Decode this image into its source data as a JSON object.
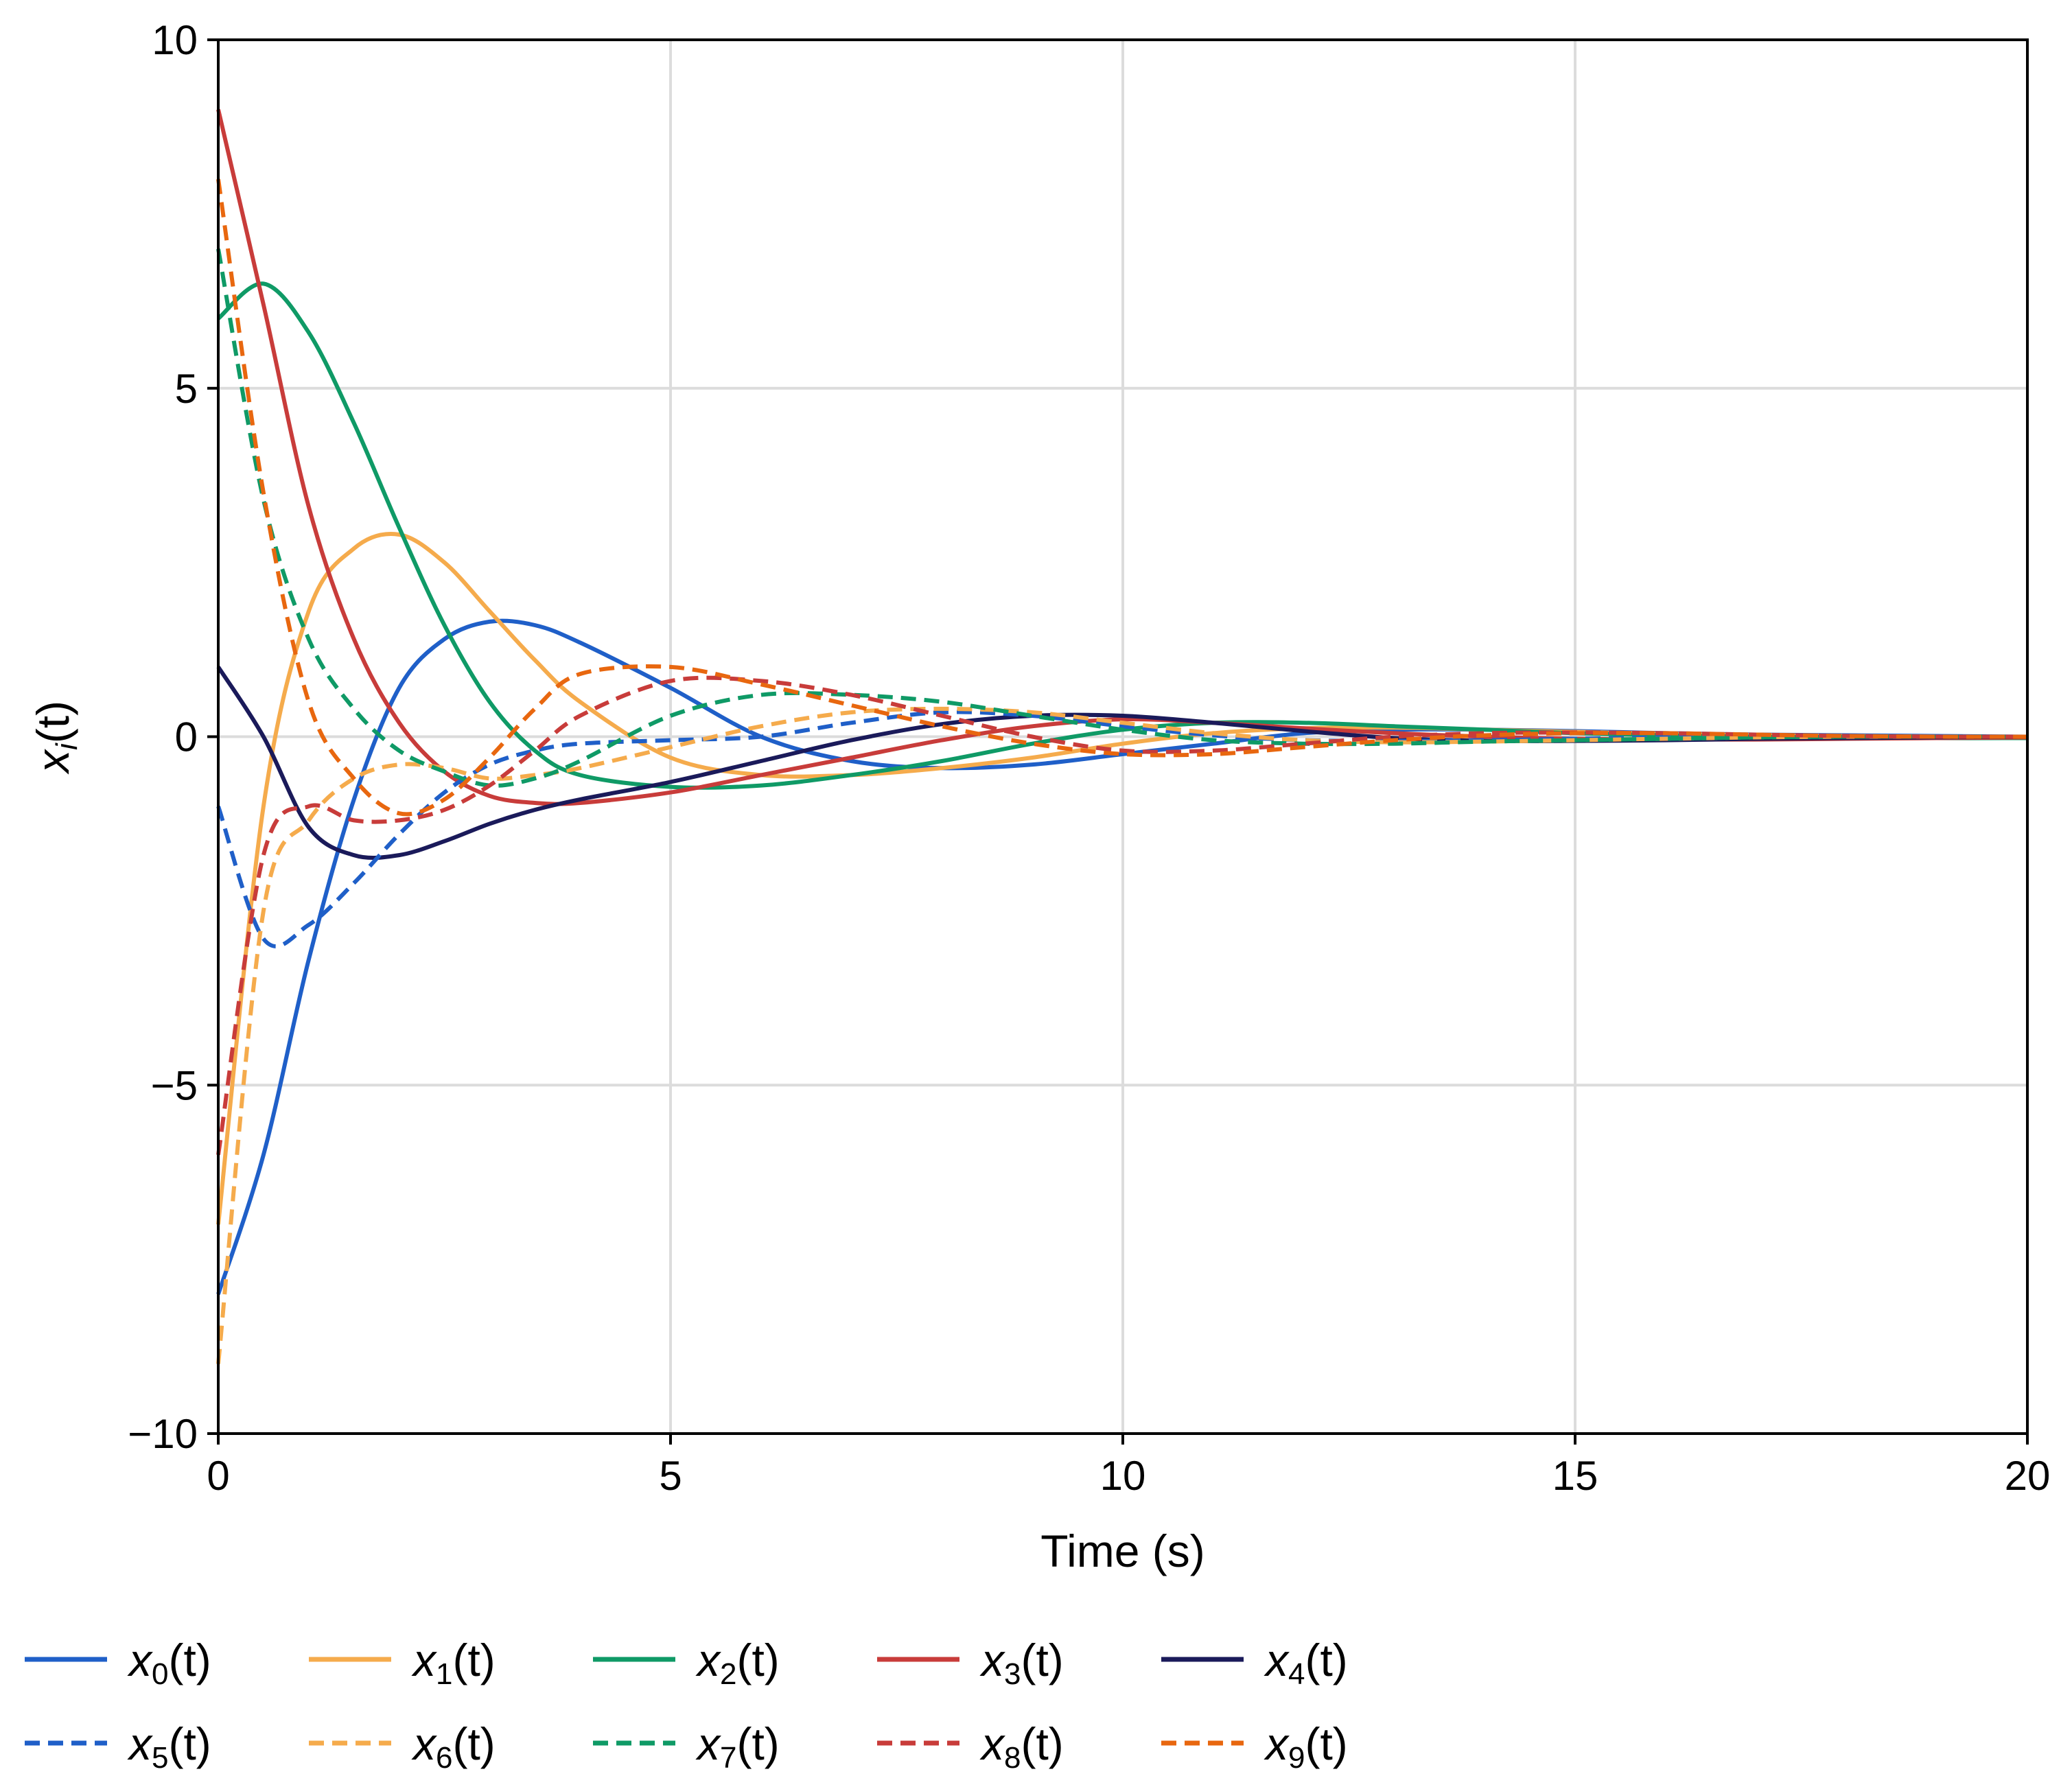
{
  "chart_data": {
    "type": "line",
    "title": "",
    "xlabel": "Time (s)",
    "ylabel": "x_i(t)",
    "ylabel_main": "x",
    "ylabel_sub": "i",
    "ylabel_tail": "(t)",
    "xlim": [
      0,
      20
    ],
    "ylim": [
      -10,
      10
    ],
    "xticks": [
      0,
      5,
      10,
      15,
      20
    ],
    "xtick_labels": [
      "0",
      "5",
      "10",
      "15",
      "20"
    ],
    "yticks": [
      -10,
      -5,
      0,
      5,
      10
    ],
    "ytick_labels": [
      "−10",
      "−5",
      "0",
      "5",
      "10"
    ],
    "grid": true,
    "legend_position": "bottom",
    "x": [
      0,
      0.5,
      1,
      1.5,
      2,
      2.5,
      3,
      3.5,
      4,
      5,
      6,
      7,
      8,
      9,
      10,
      11,
      12,
      13,
      14,
      15,
      16,
      17,
      18,
      19,
      20
    ],
    "series": [
      {
        "name": "x0(t)",
        "label_main": "x",
        "label_sub": "0",
        "label_tail": "(t)",
        "color": "#1f5fc8",
        "dashed": false,
        "values": [
          -8.0,
          -6.0,
          -3.2,
          -0.9,
          0.7,
          1.4,
          1.65,
          1.6,
          1.35,
          0.7,
          0.0,
          -0.35,
          -0.45,
          -0.4,
          -0.25,
          -0.1,
          0.05,
          0.1,
          0.1,
          0.08,
          0.05,
          0.03,
          0.02,
          0.01,
          0.0
        ]
      },
      {
        "name": "x1(t)",
        "label_main": "x",
        "label_sub": "1",
        "label_tail": "(t)",
        "color": "#f5ab4c",
        "dashed": false,
        "values": [
          -7.0,
          -1.0,
          1.8,
          2.7,
          2.9,
          2.5,
          1.8,
          1.1,
          0.5,
          -0.3,
          -0.55,
          -0.55,
          -0.45,
          -0.3,
          -0.1,
          0.05,
          0.12,
          0.13,
          0.1,
          0.07,
          0.04,
          0.02,
          0.01,
          0.0,
          0.0
        ]
      },
      {
        "name": "x2(t)",
        "label_main": "x",
        "label_sub": "2",
        "label_tail": "(t)",
        "color": "#0f9a66",
        "dashed": false,
        "values": [
          6.0,
          6.5,
          5.8,
          4.5,
          3.0,
          1.6,
          0.5,
          -0.2,
          -0.55,
          -0.72,
          -0.7,
          -0.55,
          -0.35,
          -0.1,
          0.1,
          0.2,
          0.2,
          0.15,
          0.1,
          0.05,
          0.02,
          0.0,
          -0.01,
          -0.02,
          -0.02
        ]
      },
      {
        "name": "x3(t)",
        "label_main": "x",
        "label_sub": "3",
        "label_tail": "(t)",
        "color": "#c83c3a",
        "dashed": false,
        "values": [
          9.0,
          6.2,
          3.3,
          1.4,
          0.2,
          -0.5,
          -0.85,
          -0.95,
          -0.95,
          -0.8,
          -0.55,
          -0.3,
          -0.05,
          0.15,
          0.25,
          0.2,
          0.12,
          0.05,
          0.0,
          -0.03,
          -0.04,
          -0.04,
          -0.03,
          -0.02,
          -0.01
        ]
      },
      {
        "name": "x4(t)",
        "label_main": "x",
        "label_sub": "4",
        "label_tail": "(t)",
        "color": "#1a1a5a",
        "dashed": false,
        "values": [
          1.0,
          0.0,
          -1.3,
          -1.7,
          -1.7,
          -1.5,
          -1.25,
          -1.05,
          -0.9,
          -0.65,
          -0.35,
          -0.05,
          0.18,
          0.3,
          0.3,
          0.2,
          0.08,
          -0.02,
          -0.06,
          -0.06,
          -0.05,
          -0.03,
          -0.02,
          -0.01,
          0.0
        ]
      },
      {
        "name": "x5(t)",
        "label_main": "x",
        "label_sub": "5",
        "label_tail": "(t)",
        "color": "#1f5fc8",
        "dashed": true,
        "values": [
          -1.0,
          -2.9,
          -2.7,
          -2.1,
          -1.4,
          -0.8,
          -0.4,
          -0.2,
          -0.1,
          -0.05,
          0.0,
          0.2,
          0.35,
          0.3,
          0.15,
          0.02,
          -0.05,
          -0.06,
          -0.05,
          -0.03,
          -0.01,
          0.0,
          0.0,
          0.0,
          0.0
        ]
      },
      {
        "name": "x6(t)",
        "label_main": "x",
        "label_sub": "6",
        "label_tail": "(t)",
        "color": "#f5ab4c",
        "dashed": true,
        "values": [
          -9.0,
          -2.5,
          -1.2,
          -0.6,
          -0.4,
          -0.45,
          -0.6,
          -0.55,
          -0.45,
          -0.15,
          0.15,
          0.35,
          0.4,
          0.35,
          0.2,
          0.05,
          -0.05,
          -0.08,
          -0.07,
          -0.05,
          -0.03,
          -0.01,
          0.0,
          0.0,
          0.0
        ]
      },
      {
        "name": "x7(t)",
        "label_main": "x",
        "label_sub": "7",
        "label_tail": "(t)",
        "color": "#0f9a66",
        "dashed": true,
        "values": [
          7.0,
          3.4,
          1.4,
          0.4,
          -0.2,
          -0.5,
          -0.7,
          -0.6,
          -0.35,
          0.3,
          0.6,
          0.6,
          0.5,
          0.3,
          0.1,
          -0.05,
          -0.1,
          -0.1,
          -0.07,
          -0.05,
          -0.03,
          -0.01,
          0.0,
          0.0,
          0.0
        ]
      },
      {
        "name": "x8(t)",
        "label_main": "x",
        "label_sub": "8",
        "label_tail": "(t)",
        "color": "#c83c3a",
        "dashed": true,
        "values": [
          -6.0,
          -1.7,
          -1.0,
          -1.2,
          -1.2,
          -1.05,
          -0.7,
          -0.2,
          0.3,
          0.8,
          0.8,
          0.6,
          0.3,
          0.0,
          -0.2,
          -0.2,
          -0.1,
          0.0,
          0.05,
          0.06,
          0.05,
          0.03,
          0.01,
          0.0,
          0.0
        ]
      },
      {
        "name": "x9(t)",
        "label_main": "x",
        "label_sub": "9",
        "label_tail": "(t)",
        "color": "#e8670f",
        "dashed": true,
        "values": [
          8.0,
          3.5,
          0.5,
          -0.6,
          -1.1,
          -0.9,
          -0.3,
          0.4,
          0.9,
          1.0,
          0.75,
          0.45,
          0.15,
          -0.1,
          -0.25,
          -0.25,
          -0.15,
          -0.05,
          0.02,
          0.05,
          0.05,
          0.03,
          0.01,
          0.0,
          0.0
        ]
      }
    ]
  }
}
